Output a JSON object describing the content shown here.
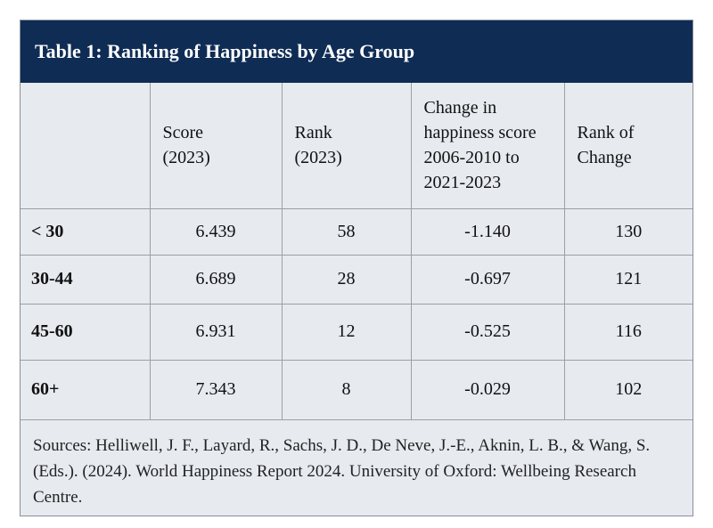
{
  "header": {
    "title": "Table 1: Ranking of Happiness by Age Group"
  },
  "table": {
    "columns": [
      "Score (2023)",
      "Rank (2023)",
      "Change in happiness score 2006-2010 to 2021-2023",
      "Rank of Change"
    ],
    "rows": [
      [
        "< 30",
        "6.439",
        "58",
        "-1.140",
        "130"
      ],
      [
        "30-44",
        "6.689",
        "28",
        "-0.697",
        "121"
      ],
      [
        "45-60",
        "6.931",
        "12",
        "-0.525",
        "116"
      ],
      [
        "60+",
        "7.343",
        "8",
        "-0.029",
        "102"
      ]
    ]
  },
  "footer": {
    "sources": "Sources: Helliwell, J. F., Layard, R., Sachs, J. D., De Neve, J.-E., Aknin, L. B., & Wang, S. (Eds.). (2024). World Happiness Report 2024. University of Oxford: Wellbeing Research Centre."
  }
}
